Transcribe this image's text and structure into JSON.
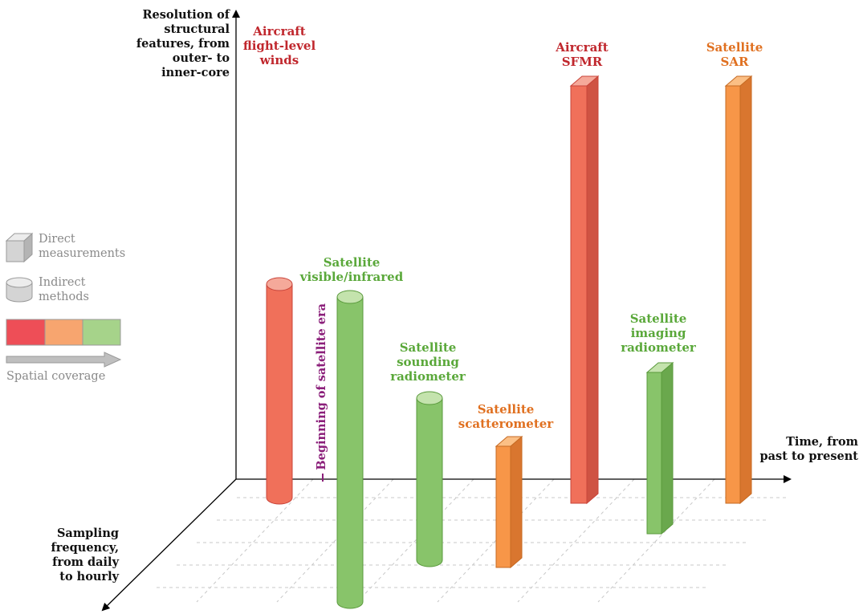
{
  "axes": {
    "y_label": "Resolution of\nstructural\nfeatures, from\nouter- to\ninner-core",
    "x_label": "Time, from\npast to present",
    "z_label": "Sampling\nfrequency,\nfrom daily\nto hourly"
  },
  "era_marker": "Beginning of satellite era",
  "legend": {
    "direct": "Direct\nmeasurements",
    "indirect": "Indirect\nmethods",
    "spatial_coverage": "Spatial coverage",
    "colors": [
      "#ee4e57",
      "#f7a56f",
      "#a6d38a"
    ]
  },
  "colors": {
    "red": "#f0705a",
    "orange": "#f79648",
    "green": "#88c46a",
    "red_text": "#c0272d",
    "orange_text": "#e07020",
    "green_text": "#5aa83a"
  },
  "instruments": [
    {
      "label": "Aircraft\nflight-level\nwinds",
      "method": "indirect",
      "coverage": "red"
    },
    {
      "label": "Satellite\nvisible/infrared",
      "method": "indirect",
      "coverage": "green"
    },
    {
      "label": "Satellite\nsounding\nradiometer",
      "method": "indirect",
      "coverage": "green"
    },
    {
      "label": "Satellite\nscatterometer",
      "method": "direct",
      "coverage": "orange"
    },
    {
      "label": "Aircraft\nSFMR",
      "method": "direct",
      "coverage": "red"
    },
    {
      "label": "Satellite\nimaging\nradiometer",
      "method": "direct",
      "coverage": "green"
    },
    {
      "label": "Satellite\nSAR",
      "method": "direct",
      "coverage": "orange"
    }
  ]
}
